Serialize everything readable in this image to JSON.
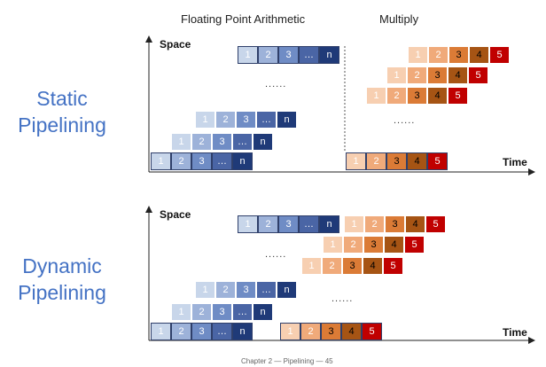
{
  "headers": {
    "fp": "Floating Point Arithmetic",
    "mul": "Multiply"
  },
  "static": {
    "label_line1": "Static",
    "label_line2": "Pipelining",
    "space_label": "Space",
    "time_label": "Time",
    "dots_fp": "......",
    "dots_mul": "......"
  },
  "dynamic": {
    "label_line1": "Dynamic",
    "label_line2": "Pipelining",
    "space_label": "Space",
    "time_label": "Time",
    "dots_fp": "......",
    "dots_mul": "......"
  },
  "footer": "Chapter 2 — Pipelining — 45",
  "stage_labels_fp": [
    "1",
    "2",
    "3",
    "…",
    "n"
  ],
  "stage_labels_mul": [
    "1",
    "2",
    "3",
    "4",
    "5"
  ],
  "colors": {
    "fp": [
      "#C8D6EA",
      "#9DB2D9",
      "#6F8CC5",
      "#4A65A5",
      "#1F3A78"
    ],
    "mul": [
      "#F7CFB1",
      "#F0AA7A",
      "#DB7B36",
      "#A65414",
      "#C00000"
    ],
    "side_label": "#4472C4"
  }
}
